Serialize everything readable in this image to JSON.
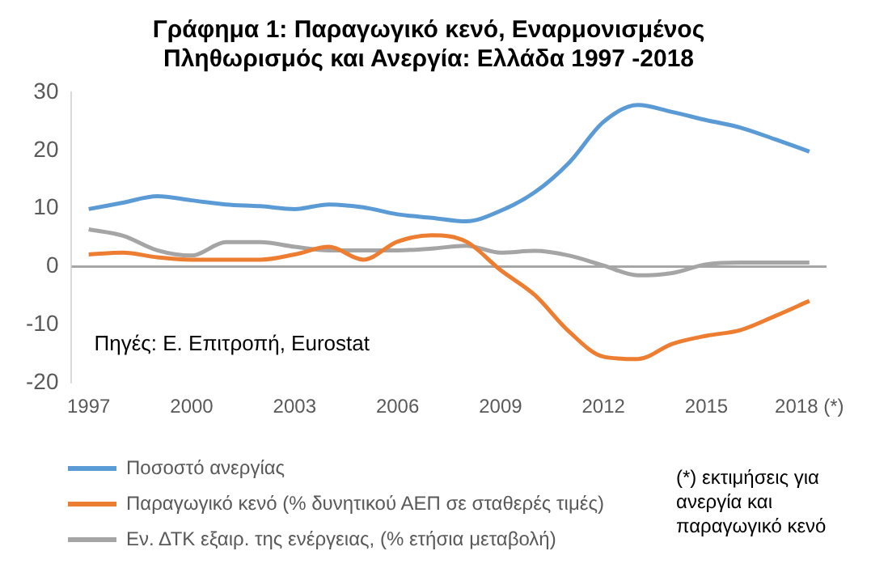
{
  "chart_data": {
    "type": "line",
    "title": "Γράφημα 1: Παραγωγικό κενό, Εναρμονισμένος Πληθωρισμός και Ανεργία: Ελλάδα 1997 -2018",
    "categories": [
      "1997",
      null,
      null,
      "2000",
      null,
      null,
      "2003",
      null,
      null,
      "2006",
      null,
      null,
      "2009",
      null,
      null,
      "2012",
      null,
      null,
      "2015",
      null,
      null,
      "2018 (*)"
    ],
    "series": [
      {
        "name": "Ποσοστό ανεργίας",
        "color": "#5b9bd5",
        "values": [
          9.9,
          11.0,
          12.1,
          11.4,
          10.7,
          10.4,
          9.9,
          10.7,
          10.2,
          9.0,
          8.4,
          7.8,
          9.6,
          12.8,
          17.9,
          24.9,
          27.8,
          26.6,
          25.2,
          23.9,
          21.9,
          19.8
        ]
      },
      {
        "name": "Παραγωγικό κενό (% δυνητικού ΑΕΠ σε σταθερές τιμές)",
        "color": "#ed7d31",
        "values": [
          2.1,
          2.4,
          1.6,
          1.2,
          1.2,
          1.2,
          2.1,
          3.4,
          1.2,
          4.3,
          5.4,
          4.3,
          -0.6,
          -4.9,
          -11.2,
          -15.5,
          -15.9,
          -13.3,
          -11.9,
          -10.9,
          -8.5,
          -5.9
        ]
      },
      {
        "name": "Εν. ΔΤΚ εξαιρ. της ενέργειας, (% ετήσια μεταβολή)",
        "color": "#a5a5a5",
        "values": [
          6.4,
          5.3,
          2.8,
          1.9,
          4.2,
          4.2,
          3.4,
          2.8,
          2.8,
          2.8,
          3.1,
          3.6,
          2.4,
          2.7,
          1.9,
          0.2,
          -1.5,
          -1.1,
          0.4,
          0.7,
          0.7,
          0.7
        ]
      }
    ],
    "ylim": [
      -20,
      30
    ],
    "yticks": [
      -20,
      -10,
      0,
      10,
      20,
      30
    ],
    "grid": false,
    "ref_lines": [
      {
        "axis": "y",
        "value": 0,
        "color": "#a6a6a6"
      }
    ],
    "legend": "bottom",
    "marker": "none",
    "line_style": "solid",
    "annotations": [
      "Πηγές: Ε. Επιτροπή, Eurostat",
      "(*) εκτιμήσεις για ανεργία και παραγωγικό κενό"
    ]
  }
}
